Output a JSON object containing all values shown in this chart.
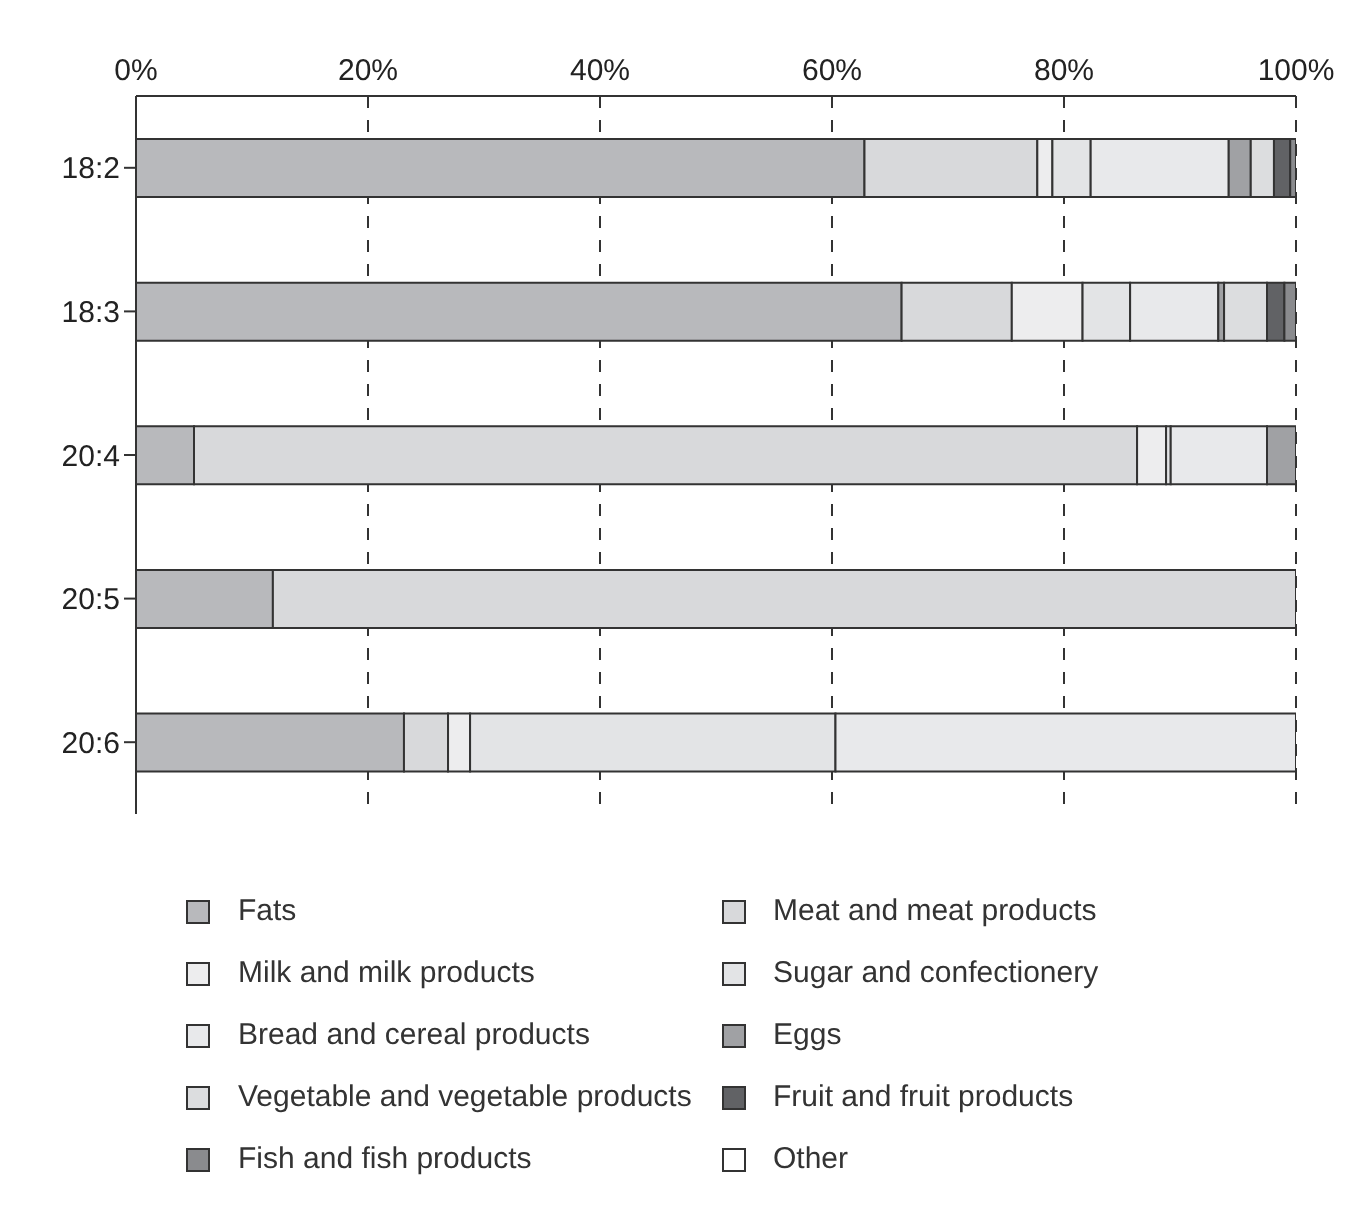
{
  "chart_data": {
    "type": "bar",
    "orientation": "horizontal",
    "stacked": true,
    "categories": [
      "18:2",
      "18:3",
      "20:4",
      "20:5",
      "20:6"
    ],
    "xlim": [
      0,
      100
    ],
    "xticks": [
      {
        "value": 0,
        "label": "0%"
      },
      {
        "value": 20,
        "label": "20%"
      },
      {
        "value": 40,
        "label": "40%"
      },
      {
        "value": 60,
        "label": "60%"
      },
      {
        "value": 80,
        "label": "80%"
      },
      {
        "value": 100,
        "label": "100%"
      }
    ],
    "grid": "x",
    "legend": "bottom",
    "series": [
      {
        "name": "Fats",
        "color": "#b8b9bc",
        "values": [
          62.8,
          66.0,
          5.0,
          11.8,
          23.1
        ]
      },
      {
        "name": "Meat and meat products",
        "color": "#d8d9db",
        "values": [
          14.9,
          9.5,
          81.3,
          88.2,
          3.8
        ]
      },
      {
        "name": "Milk and milk products",
        "color": "#ededee",
        "values": [
          1.3,
          6.1,
          2.5,
          0,
          1.9
        ]
      },
      {
        "name": "Sugar and confectionery",
        "color": "#e3e4e6",
        "values": [
          3.3,
          4.1,
          0.4,
          0,
          31.5
        ]
      },
      {
        "name": "Bread and cereal products",
        "color": "#e8e9eb",
        "values": [
          11.9,
          7.6,
          8.3,
          0,
          39.7
        ]
      },
      {
        "name": "Eggs",
        "color": "#a0a1a4",
        "values": [
          1.9,
          0.5,
          2.5,
          0,
          0
        ]
      },
      {
        "name": "Vegetable and vegetable products",
        "color": "#dcdddf",
        "values": [
          2.0,
          3.7,
          0,
          0,
          0
        ]
      },
      {
        "name": "Fruit and fruit products",
        "color": "#616265",
        "values": [
          1.4,
          1.5,
          0,
          0,
          0
        ]
      },
      {
        "name": "Fish and fish products",
        "color": "#8a8b8e",
        "values": [
          0.5,
          1.0,
          0,
          0,
          0
        ]
      },
      {
        "name": "Other",
        "color": "#ffffff",
        "values": [
          0,
          0,
          0,
          0,
          0
        ]
      }
    ]
  }
}
